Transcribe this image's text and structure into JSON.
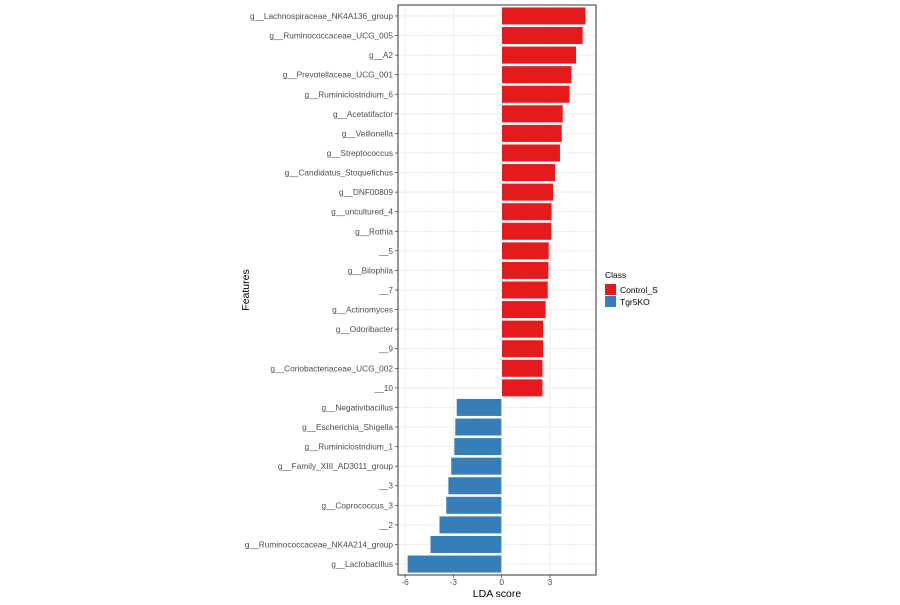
{
  "chart_data": {
    "type": "bar",
    "orientation": "horizontal",
    "xlabel": "LDA score",
    "ylabel": "Features",
    "xlim": [
      -6.44,
      5.86
    ],
    "xticks": [
      -6,
      -3,
      0,
      3
    ],
    "grid": true,
    "legend": {
      "title": "Class",
      "placement": "right",
      "entries": [
        {
          "name": "Control_S",
          "color": "#E41A1C"
        },
        {
          "name": "Tgr5KO",
          "color": "#377EB8"
        }
      ]
    },
    "categories": [
      "g__Lachnospiraceae_NK4A136_group",
      "g__Ruminococcaceae_UCG_005",
      "g__A2",
      "g__Prevotellaceae_UCG_001",
      "g__Ruminiclostridium_6",
      "g__Acetatifactor",
      "g__Veillonella",
      "g__Streptococcus",
      "g__Candidatus_Stoquefichus",
      "g__DNF00809",
      "g__uncultured_4",
      "g__Rothia",
      "__5",
      "g__Bilophila",
      "__7",
      "g__Actinomyces",
      "g__Odoribacter",
      "__9",
      "g__Coriobacteriaceae_UCG_002",
      "__10",
      "g__Negativibacillus",
      "g__Escherichia_Shigella",
      "g__Ruminiclostridium_1",
      "g__Family_XIII_AD3011_group",
      "__3",
      "g__Coprococcus_3",
      "__2",
      "g__Ruminococcaceae_NK4A214_group",
      "g__Lactobacillus"
    ],
    "values": [
      5.23,
      5.05,
      4.64,
      4.36,
      4.24,
      3.81,
      3.75,
      3.64,
      3.33,
      3.21,
      3.12,
      3.1,
      2.94,
      2.92,
      2.88,
      2.75,
      2.59,
      2.59,
      2.55,
      2.55,
      -2.81,
      -2.9,
      -2.96,
      -3.15,
      -3.33,
      -3.46,
      -3.88,
      -4.44,
      -5.86
    ],
    "classes": [
      "Control_S",
      "Control_S",
      "Control_S",
      "Control_S",
      "Control_S",
      "Control_S",
      "Control_S",
      "Control_S",
      "Control_S",
      "Control_S",
      "Control_S",
      "Control_S",
      "Control_S",
      "Control_S",
      "Control_S",
      "Control_S",
      "Control_S",
      "Control_S",
      "Control_S",
      "Control_S",
      "Tgr5KO",
      "Tgr5KO",
      "Tgr5KO",
      "Tgr5KO",
      "Tgr5KO",
      "Tgr5KO",
      "Tgr5KO",
      "Tgr5KO",
      "Tgr5KO"
    ]
  }
}
